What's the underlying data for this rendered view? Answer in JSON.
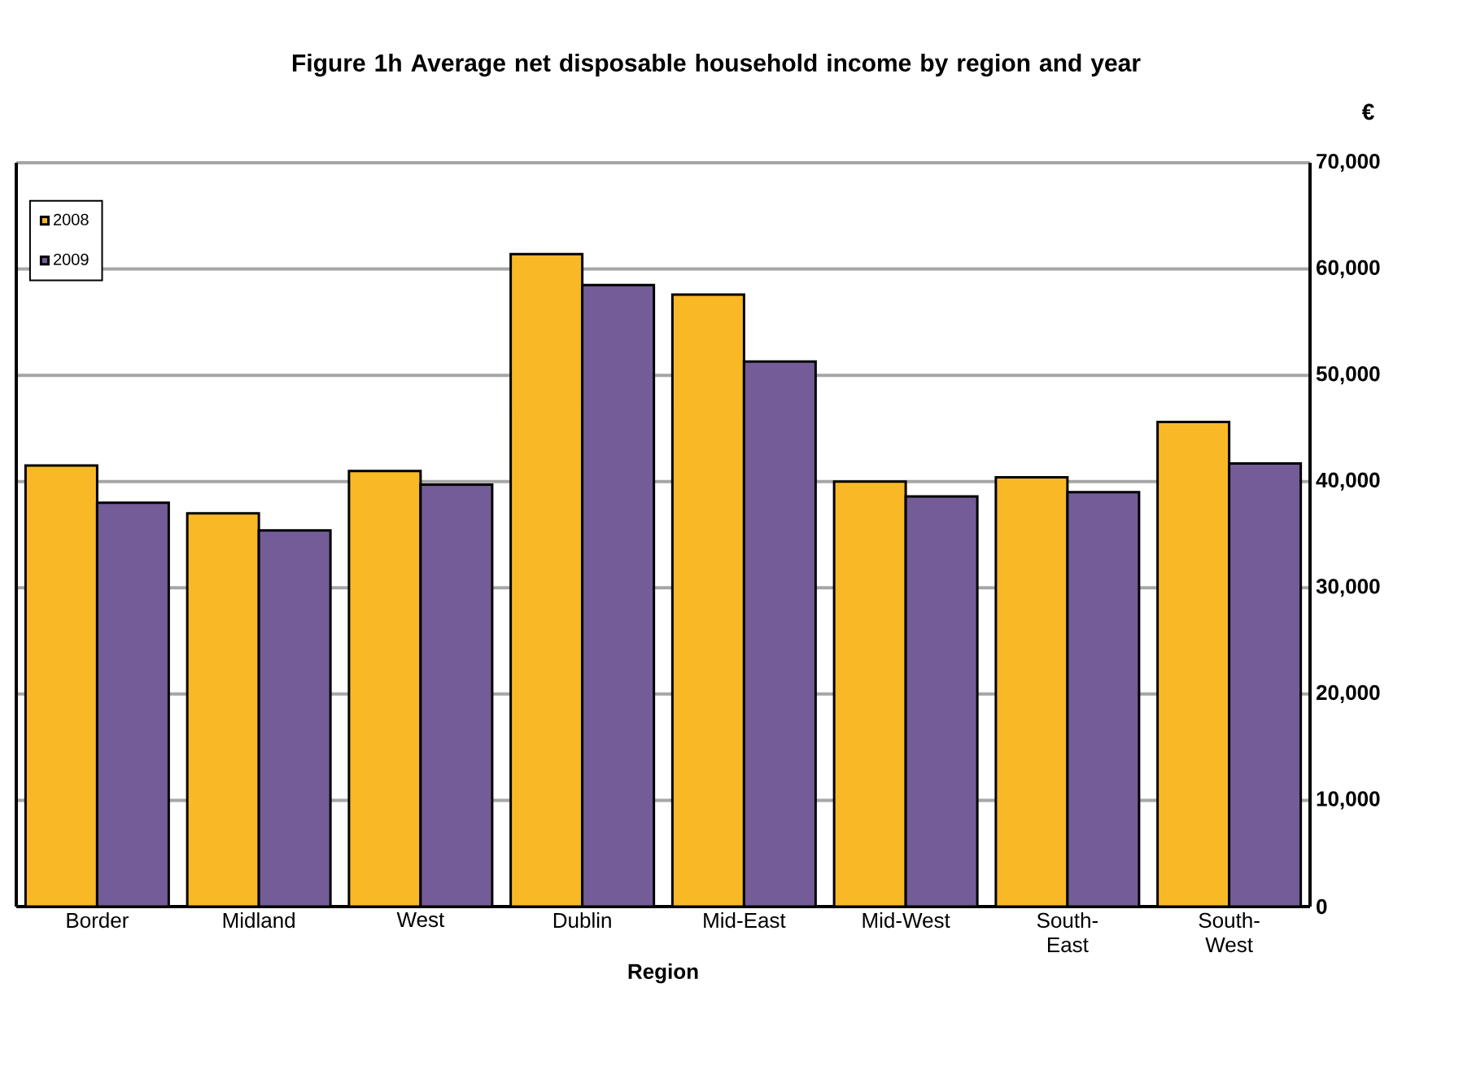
{
  "chart_data": {
    "type": "bar",
    "title": "Figure 1h  Average net disposable household income by region and year",
    "xlabel": "Region",
    "ylabel": "€",
    "categories": [
      "Border",
      "Midland",
      "West",
      "Dublin",
      "Mid-East",
      "Mid-West",
      "South-East",
      "South-West"
    ],
    "series": [
      {
        "name": "2008",
        "color": "#f9b926",
        "values": [
          41500,
          37000,
          41000,
          61400,
          57600,
          40000,
          40400,
          45600
        ]
      },
      {
        "name": "2009",
        "color": "#735c97",
        "values": [
          38000,
          35400,
          39700,
          58500,
          51300,
          38600,
          39000,
          41700
        ]
      }
    ],
    "ylim": [
      0,
      70000
    ],
    "yticks": [
      {
        "value": 0,
        "label": "0"
      },
      {
        "value": 10000,
        "label": "10,000"
      },
      {
        "value": 20000,
        "label": "20,000"
      },
      {
        "value": 30000,
        "label": "30,000"
      },
      {
        "value": 40000,
        "label": "40,000"
      },
      {
        "value": 50000,
        "label": "50,000"
      },
      {
        "value": 60000,
        "label": "60,000"
      },
      {
        "value": 70000,
        "label": "70,000"
      }
    ],
    "grid": "y",
    "legend": "top left"
  }
}
